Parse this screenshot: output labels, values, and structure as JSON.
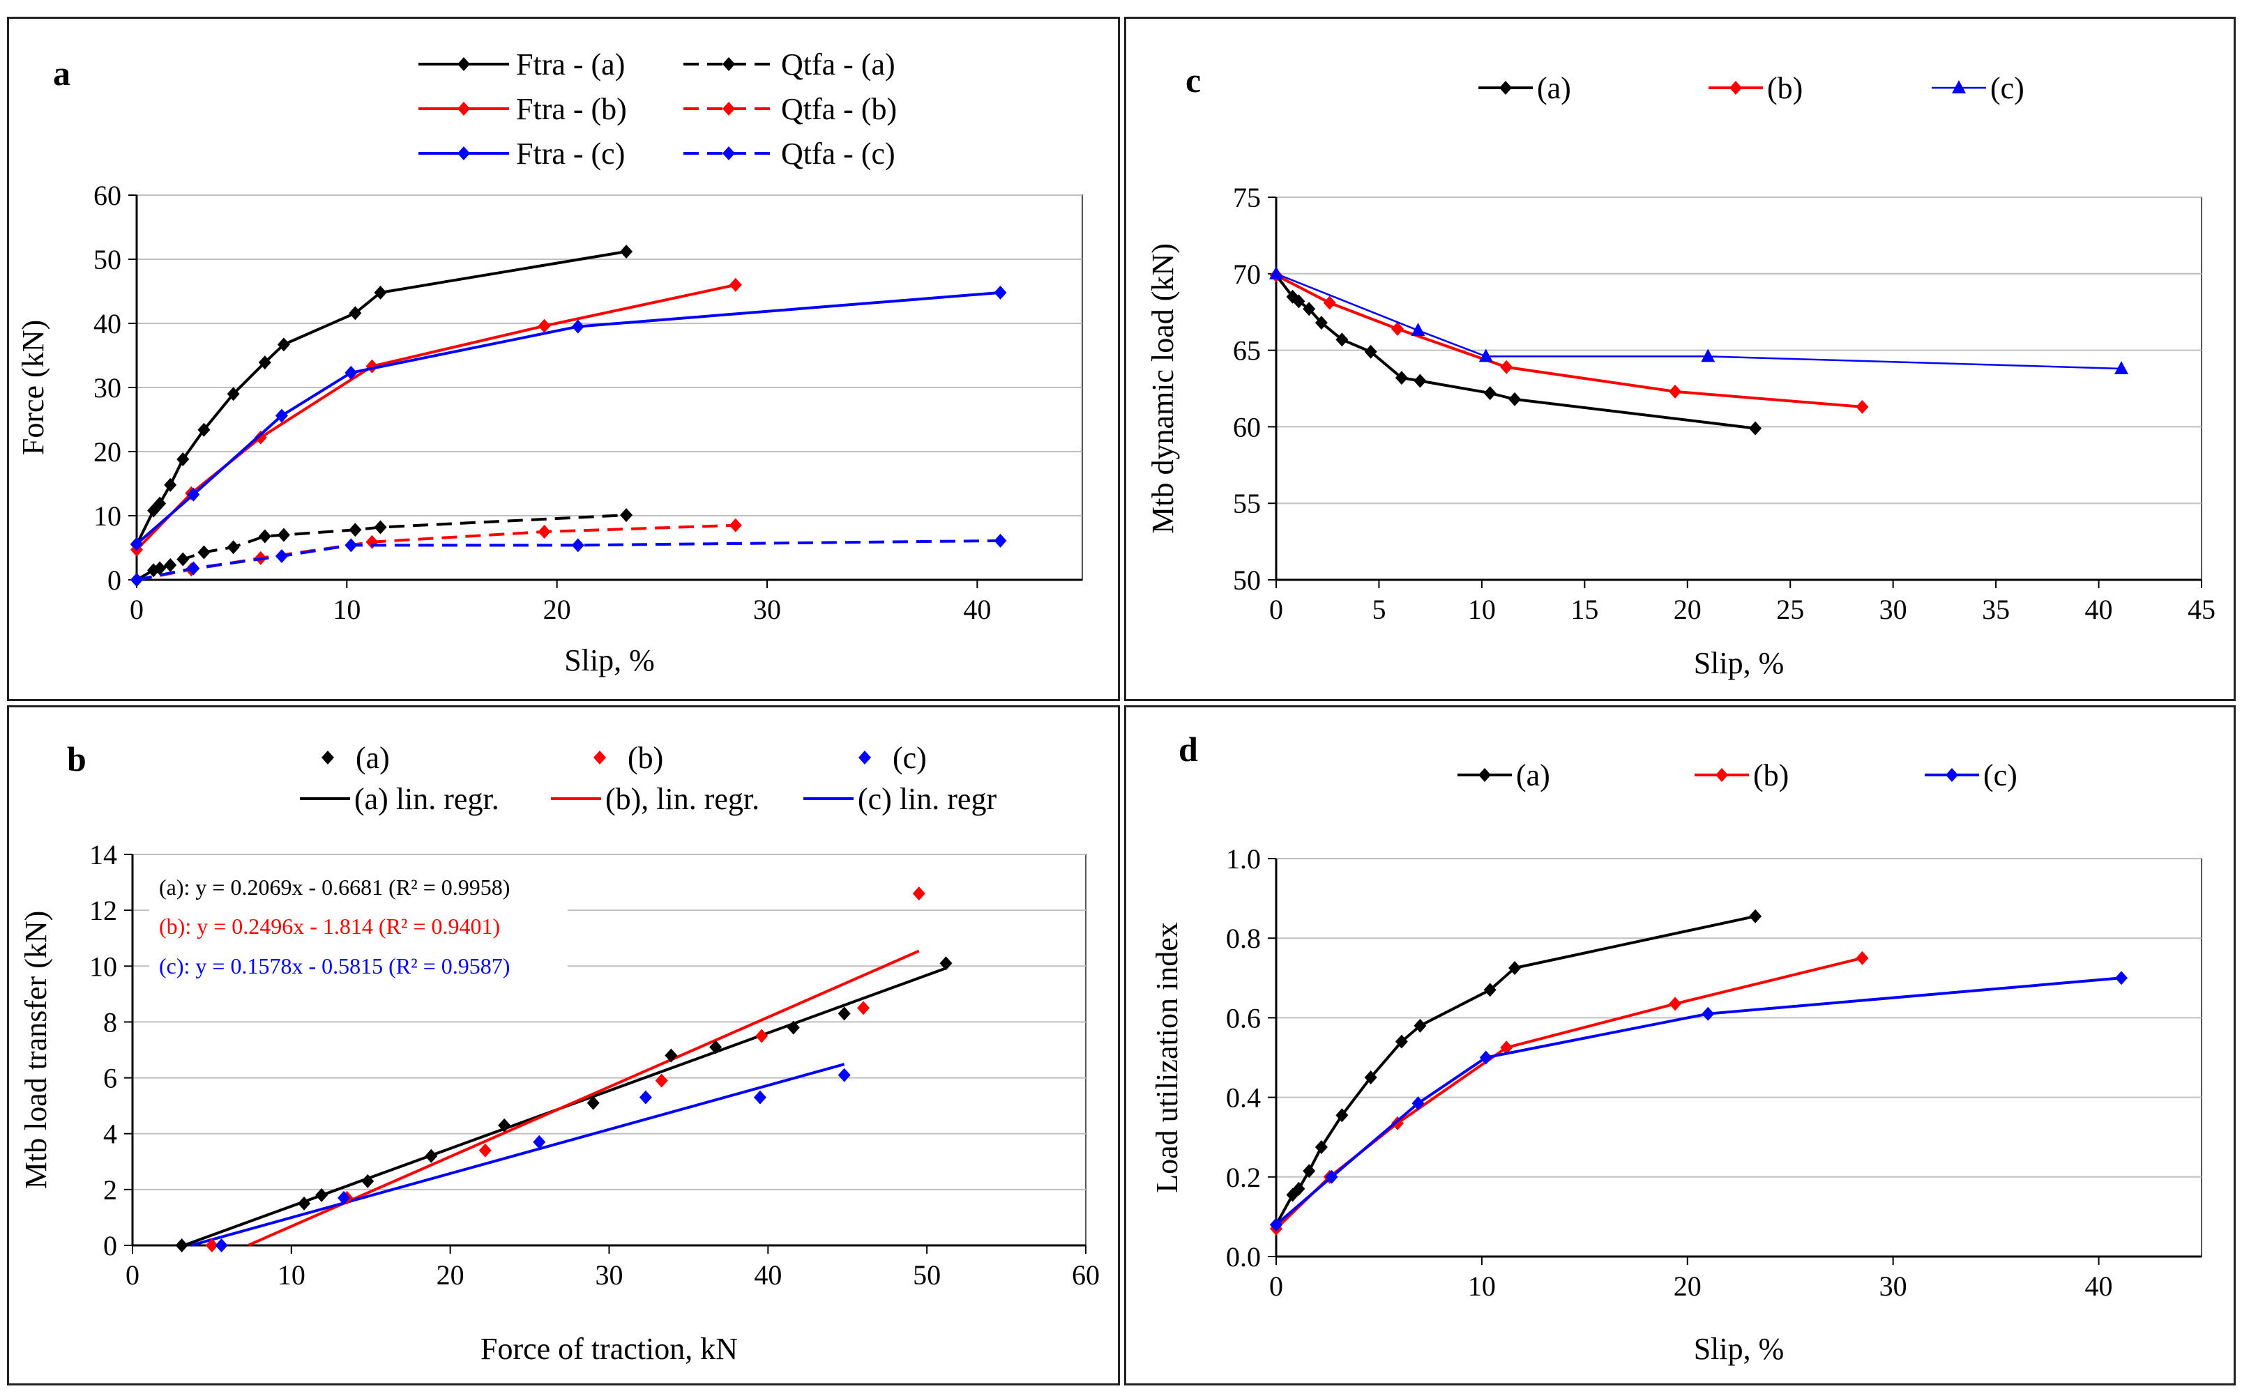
{
  "colors": {
    "a": "#000000",
    "b": "#ff0000",
    "c": "#0000ff",
    "grid": "#c0c0c0",
    "plotbg": "#ffffff"
  },
  "chart_data": [
    {
      "id": "a",
      "type": "line",
      "panel_label": "a",
      "xlabel": "Slip, %",
      "ylabel": "Force (kN)",
      "xlim": [
        0,
        45
      ],
      "ylim": [
        0,
        60
      ],
      "xticks": [
        "0",
        "10",
        "20",
        "30",
        "40"
      ],
      "xtick_values": [
        0,
        10,
        20,
        30,
        40
      ],
      "yticks": [
        "0",
        "10",
        "20",
        "30",
        "40",
        "50",
        "60"
      ],
      "ytick_values": [
        0,
        10,
        20,
        30,
        40,
        50,
        60
      ],
      "series": [
        {
          "name": "Ftra - (a)",
          "color": "#000000",
          "dash": false,
          "marker": "diamond",
          "x": [
            0,
            0.8,
            1.1,
            1.6,
            2.2,
            3.2,
            4.6,
            6.1,
            7.0,
            10.4,
            11.6,
            23.3
          ],
          "y": [
            5.5,
            10.8,
            11.9,
            14.8,
            18.8,
            23.4,
            29.0,
            33.9,
            36.7,
            41.6,
            44.8,
            51.2
          ]
        },
        {
          "name": "Qtfa - (a)",
          "color": "#000000",
          "dash": true,
          "marker": "diamond",
          "x": [
            0,
            0.8,
            1.1,
            1.6,
            2.2,
            3.2,
            4.6,
            6.1,
            7.0,
            10.4,
            11.6,
            23.3
          ],
          "y": [
            0,
            1.5,
            1.8,
            2.3,
            3.2,
            4.3,
            5.1,
            6.8,
            7.0,
            7.8,
            8.2,
            10.1
          ]
        },
        {
          "name": "Ftra - (b)",
          "color": "#ff0000",
          "dash": false,
          "marker": "diamond",
          "x": [
            0,
            2.6,
            5.9,
            11.2,
            19.4,
            28.5
          ],
          "y": [
            4.7,
            13.5,
            22.2,
            33.3,
            39.6,
            46.0
          ]
        },
        {
          "name": "Qtfa - (b)",
          "color": "#ff0000",
          "dash": true,
          "marker": "diamond",
          "x": [
            0,
            2.6,
            5.9,
            11.2,
            19.4,
            28.5
          ],
          "y": [
            0,
            1.6,
            3.4,
            5.9,
            7.5,
            8.5
          ]
        },
        {
          "name": "Ftra - (c)",
          "color": "#0000ff",
          "dash": false,
          "marker": "diamond",
          "x": [
            0,
            2.7,
            6.9,
            10.2,
            21.0,
            41.1
          ],
          "y": [
            5.6,
            13.3,
            25.6,
            32.3,
            39.5,
            44.8
          ]
        },
        {
          "name": "Qtfa - (c)",
          "color": "#0000ff",
          "dash": true,
          "marker": "diamond",
          "x": [
            0,
            2.7,
            6.9,
            10.2,
            21.0,
            41.1
          ],
          "y": [
            0,
            1.8,
            3.7,
            5.4,
            5.4,
            6.1
          ]
        }
      ]
    },
    {
      "id": "b",
      "type": "scatter",
      "panel_label": "b",
      "xlabel": "Force of traction, kN",
      "ylabel": "Mtb load transfer (kN)",
      "xlim": [
        0,
        60
      ],
      "ylim": [
        0,
        14
      ],
      "xticks": [
        "0",
        "10",
        "20",
        "30",
        "40",
        "50",
        "60"
      ],
      "xtick_values": [
        0,
        10,
        20,
        30,
        40,
        50,
        60
      ],
      "yticks": [
        "0",
        "2",
        "4",
        "6",
        "8",
        "10",
        "12",
        "14"
      ],
      "ytick_values": [
        0,
        2,
        4,
        6,
        8,
        10,
        12,
        14
      ],
      "series": [
        {
          "name": "(a)",
          "color": "#000000",
          "marker": "diamond",
          "x": [
            3.1,
            10.8,
            11.9,
            14.8,
            18.8,
            23.4,
            29.0,
            33.9,
            36.7,
            41.6,
            44.8,
            51.2
          ],
          "y": [
            0.0,
            1.5,
            1.8,
            2.3,
            3.2,
            4.3,
            5.1,
            6.8,
            7.1,
            7.8,
            8.3,
            10.1
          ]
        },
        {
          "name": "(b)",
          "color": "#ff0000",
          "marker": "diamond",
          "x": [
            5.0,
            13.5,
            22.2,
            33.3,
            39.6,
            46.0,
            49.5
          ],
          "y": [
            0.0,
            1.7,
            3.4,
            5.9,
            7.5,
            8.5,
            12.6
          ]
        },
        {
          "name": "(c)",
          "color": "#0000ff",
          "marker": "diamond",
          "x": [
            5.6,
            13.3,
            25.6,
            32.3,
            39.5,
            44.8
          ],
          "y": [
            0.0,
            1.7,
            3.7,
            5.3,
            5.3,
            6.1
          ]
        }
      ],
      "regressions": [
        {
          "name": "(a) lin. regr.",
          "color": "#000000",
          "x": [
            3.2,
            51.2
          ],
          "slope": 0.2069,
          "intercept": -0.6681,
          "equation": "(a): y = 0.2069x - 0.6681 (R² = 0.9958)"
        },
        {
          "name": "(b), lin. regr.",
          "color": "#ff0000",
          "x": [
            7.3,
            49.5
          ],
          "slope": 0.2496,
          "intercept": -1.814,
          "equation": "(b): y = 0.2496x - 1.814 (R² = 0.9401)"
        },
        {
          "name": "(c) lin. regr",
          "color": "#0000ff",
          "x": [
            3.7,
            44.8
          ],
          "slope": 0.1578,
          "intercept": -0.5815,
          "equation": "(c): y = 0.1578x - 0.5815  (R² = 0.9587)"
        }
      ]
    },
    {
      "id": "c",
      "type": "line",
      "panel_label": "c",
      "xlabel": "Slip,  %",
      "ylabel": "Mtb dynamic load (kN)",
      "xlim": [
        0,
        45
      ],
      "ylim": [
        50,
        75
      ],
      "xticks": [
        "0",
        "5",
        "10",
        "15",
        "20",
        "25",
        "30",
        "35",
        "40",
        "45"
      ],
      "xtick_values": [
        0,
        5,
        10,
        15,
        20,
        25,
        30,
        35,
        40,
        45
      ],
      "yticks": [
        "50",
        "55",
        "60",
        "65",
        "70",
        "75"
      ],
      "ytick_values": [
        50,
        55,
        60,
        65,
        70,
        75
      ],
      "series": [
        {
          "name": "(a)",
          "color": "#000000",
          "dash": false,
          "marker": "diamond",
          "x": [
            0,
            0.8,
            1.1,
            1.6,
            2.2,
            3.2,
            4.6,
            6.1,
            7.0,
            10.4,
            11.6,
            23.3
          ],
          "y": [
            69.9,
            68.5,
            68.2,
            67.7,
            66.8,
            65.7,
            64.9,
            63.2,
            63.0,
            62.2,
            61.8,
            59.9
          ]
        },
        {
          "name": "(b)",
          "color": "#ff0000",
          "dash": false,
          "marker": "diamond",
          "x": [
            0,
            2.6,
            5.9,
            11.2,
            19.4,
            28.5
          ],
          "y": [
            69.9,
            68.1,
            66.4,
            63.9,
            62.3,
            61.3
          ]
        },
        {
          "name": "(c)",
          "color": "#0000ff",
          "dash": false,
          "marker": "triangle",
          "thin": true,
          "x": [
            0,
            6.9,
            10.2,
            21.0,
            41.1
          ],
          "y": [
            70.0,
            66.3,
            64.6,
            64.6,
            63.8
          ]
        }
      ]
    },
    {
      "id": "d",
      "type": "line",
      "panel_label": "d",
      "xlabel": "Slip, %",
      "ylabel": "Load utilization index",
      "xlim": [
        0,
        45
      ],
      "ylim": [
        0,
        1.0
      ],
      "xticks": [
        "0",
        "10",
        "20",
        "30",
        "40"
      ],
      "xtick_values": [
        0,
        10,
        20,
        30,
        40
      ],
      "yticks": [
        "0.0",
        "0.2",
        "0.4",
        "0.6",
        "0.8",
        "1.0"
      ],
      "ytick_values": [
        0,
        0.2,
        0.4,
        0.6,
        0.8,
        1.0
      ],
      "series": [
        {
          "name": "(a)",
          "color": "#000000",
          "dash": false,
          "marker": "diamond",
          "x": [
            0,
            0.8,
            1.1,
            1.6,
            2.2,
            3.2,
            4.6,
            6.1,
            7.0,
            10.4,
            11.6,
            23.3
          ],
          "y": [
            0.08,
            0.155,
            0.17,
            0.215,
            0.275,
            0.355,
            0.45,
            0.54,
            0.58,
            0.67,
            0.725,
            0.855
          ]
        },
        {
          "name": "(b)",
          "color": "#ff0000",
          "dash": false,
          "marker": "diamond",
          "x": [
            0,
            2.6,
            5.9,
            11.2,
            19.4,
            28.5
          ],
          "y": [
            0.07,
            0.2,
            0.335,
            0.525,
            0.635,
            0.75
          ]
        },
        {
          "name": "(c)",
          "color": "#0000ff",
          "dash": false,
          "marker": "diamond",
          "x": [
            0,
            2.7,
            6.9,
            10.2,
            21.0,
            41.1
          ],
          "y": [
            0.08,
            0.2,
            0.385,
            0.5,
            0.61,
            0.7
          ]
        }
      ]
    }
  ]
}
